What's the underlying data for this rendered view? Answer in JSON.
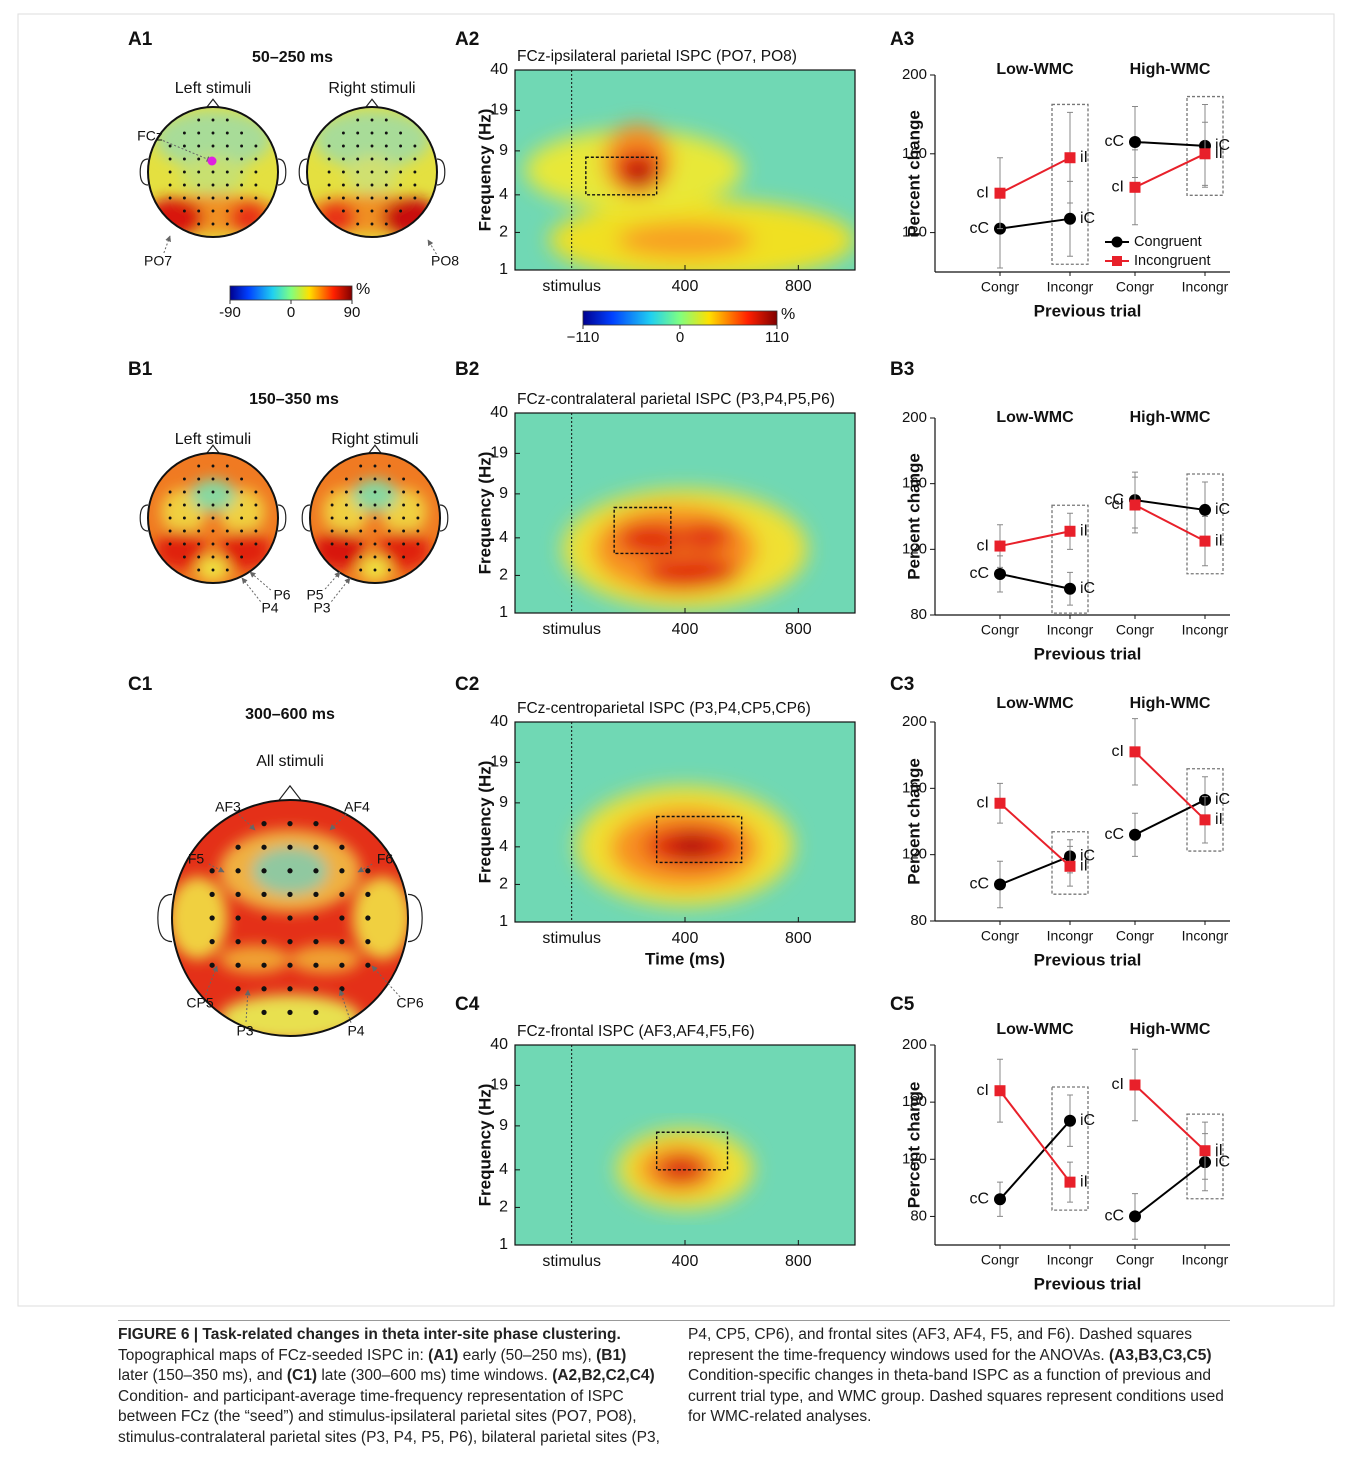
{
  "topomaps": [
    {
      "panel": "A1",
      "window": "50–250 ms",
      "maps": [
        "Left stimuli",
        "Right stimuli"
      ],
      "electrodes": [
        "FCz",
        "PO7",
        "PO8"
      ],
      "seed_color": "#e020e0",
      "colorbar": {
        "clim": [
          -90,
          90
        ],
        "ticks": [
          -90,
          0,
          90
        ],
        "unit": "%"
      }
    },
    {
      "panel": "B1",
      "window": "150–350 ms",
      "maps": [
        "Left stimuli",
        "Right stimuli"
      ],
      "electrodes": [
        "P6",
        "P4",
        "P5",
        "P3"
      ]
    },
    {
      "panel": "C1",
      "window": "300–600 ms",
      "maps": [
        "All stimuli"
      ],
      "electrodes": [
        "AF3",
        "AF4",
        "F5",
        "F6",
        "CP5",
        "CP6",
        "P3",
        "P4"
      ]
    }
  ],
  "chart_data": [
    {
      "type": "heatmap",
      "panel": "A2",
      "title": "FCz-ipsilateral parietal ISPC (PO7, PO8)",
      "ylabel": "Frequency (Hz)",
      "xlim": [
        -200,
        1000
      ],
      "xticks": [
        {
          "value": 0,
          "label": "stimulus"
        },
        400,
        800
      ],
      "ylim": [
        1,
        40
      ],
      "yticks": [
        1,
        2,
        4,
        9,
        19,
        40
      ],
      "log_y": true,
      "window": {
        "x": [
          50,
          300
        ],
        "y": [
          4,
          8
        ]
      },
      "colorbar": {
        "clim": [
          -110,
          110
        ],
        "ticks": [
          {
            "value": -110,
            "label": "−110"
          },
          0,
          110
        ],
        "unit": "%"
      }
    },
    {
      "type": "line",
      "panel": "A3",
      "ylabel": "Percent change",
      "xlabel": "Previous trial",
      "groups": [
        "Low-WMC",
        "High-WMC"
      ],
      "categories": [
        "Congr",
        "Incongr",
        "Congr",
        "Incongr"
      ],
      "ylim": [
        100,
        200
      ],
      "yticks": [
        120,
        160,
        200
      ],
      "legend": "lower right",
      "series": [
        {
          "name": "Congruent",
          "color": "#000000",
          "marker": "circle",
          "values": [
            122,
            127,
            166,
            164
          ],
          "errors": [
            20,
            19,
            18,
            21
          ],
          "point_labels": [
            "cC",
            "iC",
            "cC",
            "iC"
          ]
        },
        {
          "name": "Incongruent",
          "color": "#e8202a",
          "marker": "square",
          "values": [
            140,
            158,
            143,
            160
          ],
          "errors": [
            18,
            23,
            19,
            16
          ],
          "point_labels": [
            "cI",
            "iI",
            "cI",
            "iI"
          ]
        }
      ]
    },
    {
      "type": "heatmap",
      "panel": "B2",
      "title": "FCz-contralateral parietal ISPC (P3,P4,P5,P6)",
      "ylabel": "Frequency (Hz)",
      "xlim": [
        -200,
        1000
      ],
      "xticks": [
        {
          "value": 0,
          "label": "stimulus"
        },
        400,
        800
      ],
      "ylim": [
        1,
        40
      ],
      "yticks": [
        1,
        2,
        4,
        9,
        19,
        40
      ],
      "log_y": true,
      "window": {
        "x": [
          150,
          350
        ],
        "y": [
          3,
          7
        ]
      }
    },
    {
      "type": "line",
      "panel": "B3",
      "ylabel": "Percent change",
      "xlabel": "Previous trial",
      "groups": [
        "Low-WMC",
        "High-WMC"
      ],
      "categories": [
        "Congr",
        "Incongr",
        "Congr",
        "Incongr"
      ],
      "ylim": [
        80,
        200
      ],
      "yticks": [
        80,
        120,
        160,
        200
      ],
      "series": [
        {
          "name": "Congruent",
          "color": "#000000",
          "marker": "circle",
          "values": [
            105,
            96,
            150,
            144
          ],
          "errors": [
            11,
            10,
            17,
            17
          ],
          "point_labels": [
            "cC",
            "iC",
            "cC",
            "iC"
          ]
        },
        {
          "name": "Incongruent",
          "color": "#e8202a",
          "marker": "square",
          "values": [
            122,
            131,
            147,
            125
          ],
          "errors": [
            13,
            11,
            17,
            15
          ],
          "point_labels": [
            "cI",
            "iI",
            "cI",
            "iI"
          ]
        }
      ]
    },
    {
      "type": "heatmap",
      "panel": "C2",
      "title": "FCz-centroparietal ISPC (P3,P4,CP5,CP6)",
      "ylabel": "Frequency (Hz)",
      "xlabel": "Time (ms)",
      "xlim": [
        -200,
        1000
      ],
      "xticks": [
        {
          "value": 0,
          "label": "stimulus"
        },
        400,
        800
      ],
      "ylim": [
        1,
        40
      ],
      "yticks": [
        1,
        2,
        4,
        9,
        19,
        40
      ],
      "log_y": true,
      "window": {
        "x": [
          300,
          600
        ],
        "y": [
          3,
          7
        ]
      }
    },
    {
      "type": "line",
      "panel": "C3",
      "ylabel": "Percent change",
      "xlabel": "Previous trial",
      "groups": [
        "Low-WMC",
        "High-WMC"
      ],
      "categories": [
        "Congr",
        "Incongr",
        "Congr",
        "Incongr"
      ],
      "ylim": [
        80,
        200
      ],
      "yticks": [
        80,
        120,
        160,
        200
      ],
      "series": [
        {
          "name": "Congruent",
          "color": "#000000",
          "marker": "circle",
          "values": [
            102,
            119,
            132,
            153
          ],
          "errors": [
            14,
            10,
            13,
            14
          ],
          "point_labels": [
            "cC",
            "iC",
            "cC",
            "iC"
          ]
        },
        {
          "name": "Incongruent",
          "color": "#e8202a",
          "marker": "square",
          "values": [
            151,
            113,
            182,
            141
          ],
          "errors": [
            12,
            12,
            20,
            14
          ],
          "point_labels": [
            "cI",
            "iI",
            "cI",
            "iI"
          ]
        }
      ]
    },
    {
      "type": "heatmap",
      "panel": "C4",
      "title": "FCz-frontal ISPC (AF3,AF4,F5,F6)",
      "ylabel": "Frequency (Hz)",
      "xlim": [
        -200,
        1000
      ],
      "xticks": [
        {
          "value": 0,
          "label": "stimulus"
        },
        400,
        800
      ],
      "ylim": [
        1,
        40
      ],
      "yticks": [
        1,
        2,
        4,
        9,
        19,
        40
      ],
      "log_y": true,
      "window": {
        "x": [
          300,
          550
        ],
        "y": [
          4,
          8
        ]
      }
    },
    {
      "type": "line",
      "panel": "C5",
      "ylabel": "Percent change",
      "xlabel": "Previous trial",
      "groups": [
        "Low-WMC",
        "High-WMC"
      ],
      "categories": [
        "Congr",
        "Incongr",
        "Congr",
        "Incongr"
      ],
      "ylim": [
        60,
        200
      ],
      "yticks": [
        80,
        120,
        160,
        200
      ],
      "series": [
        {
          "name": "Congruent",
          "color": "#000000",
          "marker": "circle",
          "values": [
            92,
            147,
            80,
            118
          ],
          "errors": [
            12,
            18,
            16,
            20
          ],
          "point_labels": [
            "cC",
            "iC",
            "cC",
            "iC"
          ]
        },
        {
          "name": "Incongruent",
          "color": "#e8202a",
          "marker": "square",
          "values": [
            168,
            104,
            172,
            126
          ],
          "errors": [
            22,
            14,
            25,
            20
          ],
          "point_labels": [
            "cI",
            "iI",
            "cI",
            "iI"
          ]
        }
      ]
    }
  ],
  "caption": {
    "runs": [
      {
        "text": "FIGURE 6 | Task-related changes in theta inter-site phase clustering.",
        "bold": true
      },
      {
        "text": "Topographical maps of FCz-seeded ISPC in: "
      },
      {
        "text": "(A1)",
        "bold": true
      },
      {
        "text": " early (50–250 ms), "
      },
      {
        "text": "(B1)",
        "bold": true
      },
      {
        "text": " later (150–350 ms), and "
      },
      {
        "text": "(C1)",
        "bold": true
      },
      {
        "text": " late (300–600 ms) time windows. "
      },
      {
        "text": "(A2,B2,C2,C4)",
        "bold": true
      },
      {
        "text": " Condition- and participant-average time-frequency representation of ISPC between FCz (the “seed”) and stimulus-ipsilateral parietal sites (PO7, PO8), stimulus-contralateral parietal sites (P3, P4, P5, P6), bilateral parietal sites (P3, P4, CP5, CP6), and frontal sites (AF3, AF4, F5, and F6). Dashed squares represent the time-frequency windows used for the ANOVAs. "
      },
      {
        "text": "(A3,B3,C3,C5)",
        "bold": true
      },
      {
        "text": " Condition-specific changes in theta-band ISPC as a function of previous and current trial type, and WMC group. Dashed squares represent conditions used for WMC-related analyses."
      }
    ]
  }
}
